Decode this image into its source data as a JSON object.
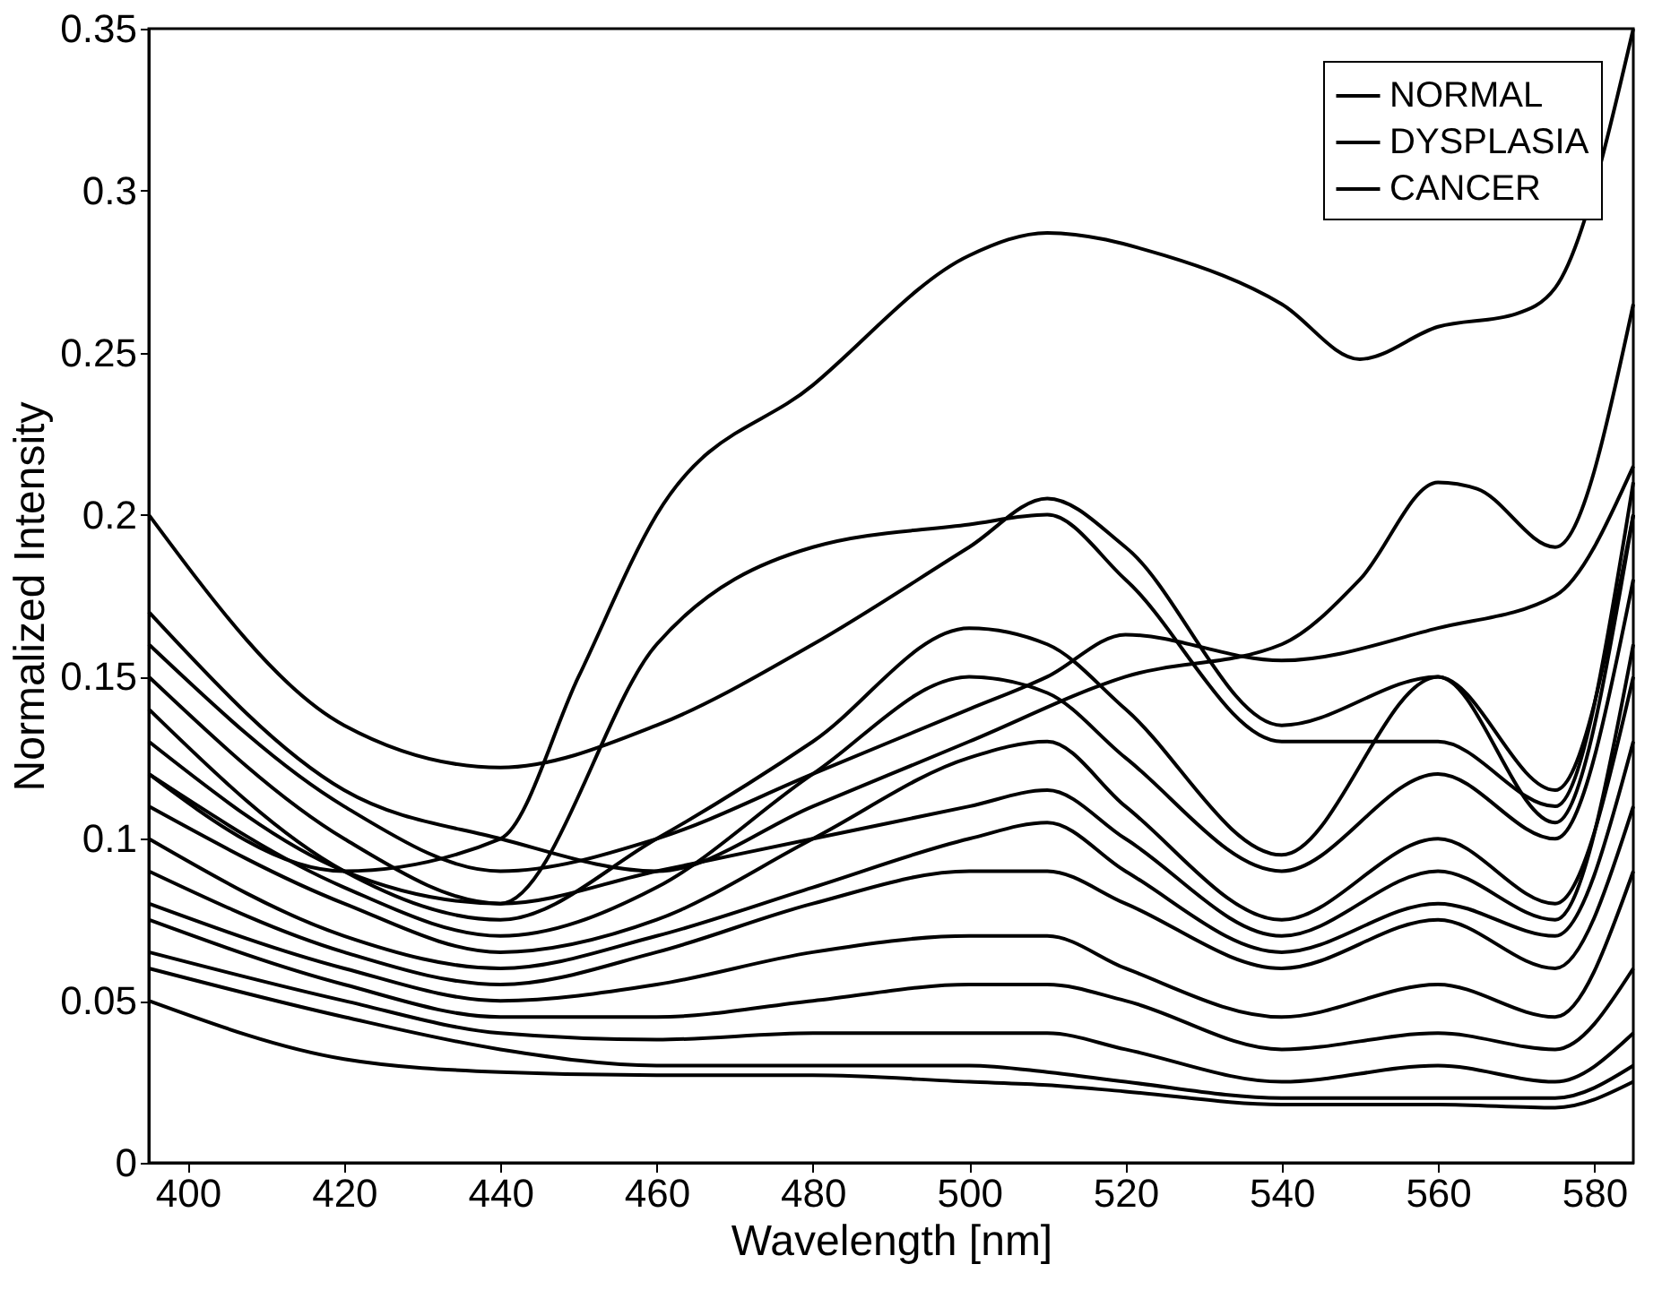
{
  "chart_data": {
    "type": "line",
    "xlabel": "Wavelength [nm]",
    "ylabel": "Normalized Intensity",
    "xlim": [
      395,
      585
    ],
    "xticks": [
      400,
      420,
      440,
      460,
      480,
      500,
      520,
      540,
      560,
      580
    ],
    "ylim": [
      0,
      0.35
    ],
    "yticks": [
      0,
      0.05,
      0.1,
      0.15,
      0.2,
      0.25,
      0.3,
      0.35
    ],
    "grid": false,
    "legend": "top right",
    "marker": "none",
    "line_style": "solid",
    "x": [
      395,
      420,
      440,
      460,
      480,
      500,
      510,
      520,
      540,
      560,
      575,
      585
    ],
    "series": [
      {
        "name": "NORMAL",
        "color": "#000000",
        "x": [
          395,
          420,
          440,
          450,
          460,
          480,
          500,
          510,
          525,
          540,
          550,
          560,
          570,
          575,
          585
        ],
        "values": [
          0.12,
          0.09,
          0.1,
          0.15,
          0.2,
          0.24,
          0.28,
          0.287,
          0.28,
          0.265,
          0.248,
          0.258,
          0.262,
          0.27,
          0.35
        ]
      },
      {
        "name": "DYSPLASIA",
        "color": "#000000",
        "values": [
          0.2,
          0.135,
          0.122,
          0.135,
          0.16,
          0.19,
          0.205,
          0.19,
          0.135,
          0.15,
          0.115,
          0.2
        ]
      },
      {
        "name": "CANCER",
        "color": "#000000",
        "x": [
          395,
          420,
          440,
          460,
          480,
          500,
          520,
          540,
          550,
          560,
          565,
          575,
          585
        ],
        "values": [
          0.17,
          0.115,
          0.1,
          0.09,
          0.11,
          0.13,
          0.15,
          0.16,
          0.18,
          0.21,
          0.208,
          0.19,
          0.265
        ]
      },
      {
        "color": "#000000",
        "values": [
          0.15,
          0.1,
          0.08,
          0.16,
          0.19,
          0.197,
          0.2,
          0.18,
          0.13,
          0.13,
          0.11,
          0.21
        ]
      },
      {
        "color": "#000000",
        "values": [
          0.14,
          0.09,
          0.075,
          0.1,
          0.13,
          0.165,
          0.16,
          0.14,
          0.095,
          0.15,
          0.105,
          0.2
        ]
      },
      {
        "color": "#000000",
        "values": [
          0.12,
          0.085,
          0.07,
          0.085,
          0.12,
          0.15,
          0.145,
          0.125,
          0.09,
          0.12,
          0.1,
          0.18
        ]
      },
      {
        "color": "#000000",
        "values": [
          0.11,
          0.08,
          0.065,
          0.075,
          0.1,
          0.125,
          0.13,
          0.11,
          0.075,
          0.1,
          0.08,
          0.15
        ]
      },
      {
        "color": "#000000",
        "values": [
          0.1,
          0.07,
          0.06,
          0.07,
          0.085,
          0.1,
          0.105,
          0.09,
          0.065,
          0.08,
          0.07,
          0.13
        ]
      },
      {
        "color": "#000000",
        "values": [
          0.09,
          0.065,
          0.055,
          0.065,
          0.08,
          0.09,
          0.09,
          0.08,
          0.06,
          0.075,
          0.06,
          0.11
        ]
      },
      {
        "color": "#000000",
        "values": [
          0.08,
          0.06,
          0.05,
          0.055,
          0.065,
          0.07,
          0.07,
          0.06,
          0.045,
          0.055,
          0.045,
          0.09
        ]
      },
      {
        "color": "#000000",
        "values": [
          0.075,
          0.055,
          0.045,
          0.045,
          0.05,
          0.055,
          0.055,
          0.05,
          0.035,
          0.04,
          0.035,
          0.06
        ]
      },
      {
        "color": "#000000",
        "values": [
          0.065,
          0.05,
          0.04,
          0.038,
          0.04,
          0.04,
          0.04,
          0.035,
          0.025,
          0.03,
          0.025,
          0.04
        ]
      },
      {
        "color": "#000000",
        "values": [
          0.06,
          0.045,
          0.035,
          0.03,
          0.03,
          0.03,
          0.028,
          0.025,
          0.02,
          0.02,
          0.02,
          0.03
        ]
      },
      {
        "color": "#000000",
        "values": [
          0.05,
          0.032,
          0.028,
          0.027,
          0.027,
          0.025,
          0.024,
          0.022,
          0.018,
          0.018,
          0.017,
          0.025
        ]
      },
      {
        "color": "#000000",
        "values": [
          0.16,
          0.11,
          0.09,
          0.1,
          0.12,
          0.14,
          0.15,
          0.163,
          0.155,
          0.165,
          0.175,
          0.215
        ]
      },
      {
        "color": "#000000",
        "values": [
          0.13,
          0.09,
          0.08,
          0.09,
          0.1,
          0.11,
          0.115,
          0.1,
          0.07,
          0.09,
          0.075,
          0.16
        ]
      }
    ]
  }
}
